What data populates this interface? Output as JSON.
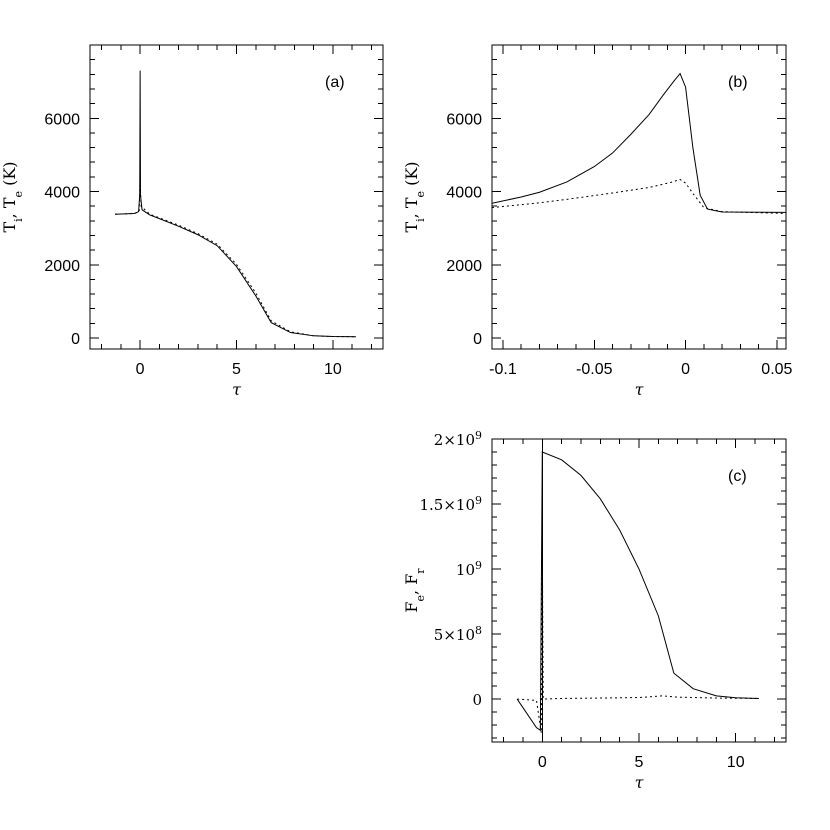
{
  "chart_data": [
    {
      "id": "a",
      "type": "line",
      "panel_label": "(a)",
      "xlabel": "τ",
      "ylabel": "T_i, T_e (K)",
      "xlim": [
        -2.6,
        12.6
      ],
      "ylim": [
        -300,
        8000
      ],
      "xticks": [
        0,
        5,
        10
      ],
      "xtick_labels": [
        "0",
        "5",
        "10"
      ],
      "yticks": [
        0,
        2000,
        4000,
        6000
      ],
      "ytick_labels": [
        "0",
        "2000",
        "4000",
        "6000"
      ],
      "series": [
        {
          "style": "solid",
          "points": [
            [
              -1.3,
              3380
            ],
            [
              -0.3,
              3400
            ],
            [
              -0.08,
              3450
            ],
            [
              -0.02,
              3900
            ],
            [
              0,
              7300
            ],
            [
              0.02,
              3900
            ],
            [
              0.1,
              3500
            ],
            [
              0.5,
              3360
            ],
            [
              1,
              3260
            ],
            [
              2,
              3050
            ],
            [
              3,
              2820
            ],
            [
              4,
              2520
            ],
            [
              5,
              1950
            ],
            [
              6,
              1150
            ],
            [
              6.8,
              420
            ],
            [
              7.8,
              150
            ],
            [
              9,
              60
            ],
            [
              10,
              40
            ],
            [
              11.2,
              35
            ]
          ]
        },
        {
          "style": "dotted",
          "points": [
            [
              -1.3,
              3380
            ],
            [
              -0.3,
              3400
            ],
            [
              -0.05,
              3450
            ],
            [
              0,
              4300
            ],
            [
              0.05,
              3600
            ],
            [
              0.5,
              3380
            ],
            [
              1,
              3280
            ],
            [
              2,
              3080
            ],
            [
              3,
              2850
            ],
            [
              4,
              2560
            ],
            [
              5,
              2010
            ],
            [
              6,
              1230
            ],
            [
              6.8,
              470
            ],
            [
              7.8,
              170
            ],
            [
              9,
              60
            ],
            [
              10,
              40
            ],
            [
              11.2,
              35
            ]
          ]
        }
      ]
    },
    {
      "id": "b",
      "type": "line",
      "panel_label": "(b)",
      "xlabel": "τ",
      "ylabel": "T_i, T_e (K)",
      "xlim": [
        -0.106,
        0.055
      ],
      "ylim": [
        -300,
        8000
      ],
      "xticks": [
        -0.1,
        -0.05,
        0,
        0.05
      ],
      "xtick_labels": [
        "-0.1",
        "-0.05",
        "0",
        "0.05"
      ],
      "yticks": [
        0,
        2000,
        4000,
        6000
      ],
      "ytick_labels": [
        "0",
        "2000",
        "4000",
        "6000"
      ],
      "series": [
        {
          "style": "solid",
          "points": [
            [
              -0.106,
              3680
            ],
            [
              -0.09,
              3850
            ],
            [
              -0.08,
              3980
            ],
            [
              -0.065,
              4260
            ],
            [
              -0.05,
              4680
            ],
            [
              -0.04,
              5050
            ],
            [
              -0.03,
              5560
            ],
            [
              -0.02,
              6100
            ],
            [
              -0.012,
              6650
            ],
            [
              -0.006,
              7040
            ],
            [
              -0.003,
              7220
            ],
            [
              0,
              6850
            ],
            [
              0.004,
              5200
            ],
            [
              0.008,
              3900
            ],
            [
              0.012,
              3520
            ],
            [
              0.02,
              3440
            ],
            [
              0.055,
              3430
            ]
          ]
        },
        {
          "style": "dotted",
          "points": [
            [
              -0.106,
              3560
            ],
            [
              -0.08,
              3690
            ],
            [
              -0.06,
              3820
            ],
            [
              -0.04,
              3960
            ],
            [
              -0.02,
              4110
            ],
            [
              -0.008,
              4250
            ],
            [
              -0.003,
              4330
            ],
            [
              0,
              4230
            ],
            [
              0.004,
              3950
            ],
            [
              0.01,
              3560
            ],
            [
              0.02,
              3450
            ],
            [
              0.055,
              3400
            ]
          ]
        }
      ]
    },
    {
      "id": "c",
      "type": "line",
      "panel_label": "(c)",
      "xlabel": "τ",
      "ylabel": "F_e, F_r",
      "xlim": [
        -2.6,
        12.6
      ],
      "ylim": [
        -330000000,
        2000000000
      ],
      "xticks": [
        0,
        5,
        10
      ],
      "xtick_labels": [
        "0",
        "5",
        "10"
      ],
      "yticks": [
        0,
        500000000,
        1000000000,
        1500000000,
        2000000000
      ],
      "ytick_labels": [
        "0",
        "5×10⁸",
        "10⁹",
        "1.5×10⁹",
        "2×10⁹"
      ],
      "series": [
        {
          "style": "solid",
          "points": [
            [
              -1.3,
              0
            ],
            [
              -0.3,
              -220000000
            ],
            [
              -0.1,
              -240000000
            ],
            [
              0,
              1900000000
            ],
            [
              1,
              1840000000
            ],
            [
              2,
              1720000000
            ],
            [
              3,
              1540000000
            ],
            [
              4,
              1300000000
            ],
            [
              5,
              1000000000
            ],
            [
              6,
              640000000
            ],
            [
              6.8,
              200000000
            ],
            [
              7.8,
              80000000
            ],
            [
              9,
              25000000
            ],
            [
              10,
              10000000
            ],
            [
              11.2,
              5000000
            ]
          ]
        },
        {
          "style": "dotted",
          "points": [
            [
              -1.3,
              0
            ],
            [
              -0.3,
              -10000000
            ],
            [
              -0.05,
              -260000000
            ],
            [
              0,
              1200000000
            ],
            [
              0.05,
              0
            ],
            [
              1,
              5000000
            ],
            [
              3,
              8000000
            ],
            [
              5,
              12000000
            ],
            [
              6.2,
              25000000
            ],
            [
              7,
              15000000
            ],
            [
              9,
              8000000
            ],
            [
              11.2,
              5000000
            ]
          ]
        }
      ]
    }
  ]
}
